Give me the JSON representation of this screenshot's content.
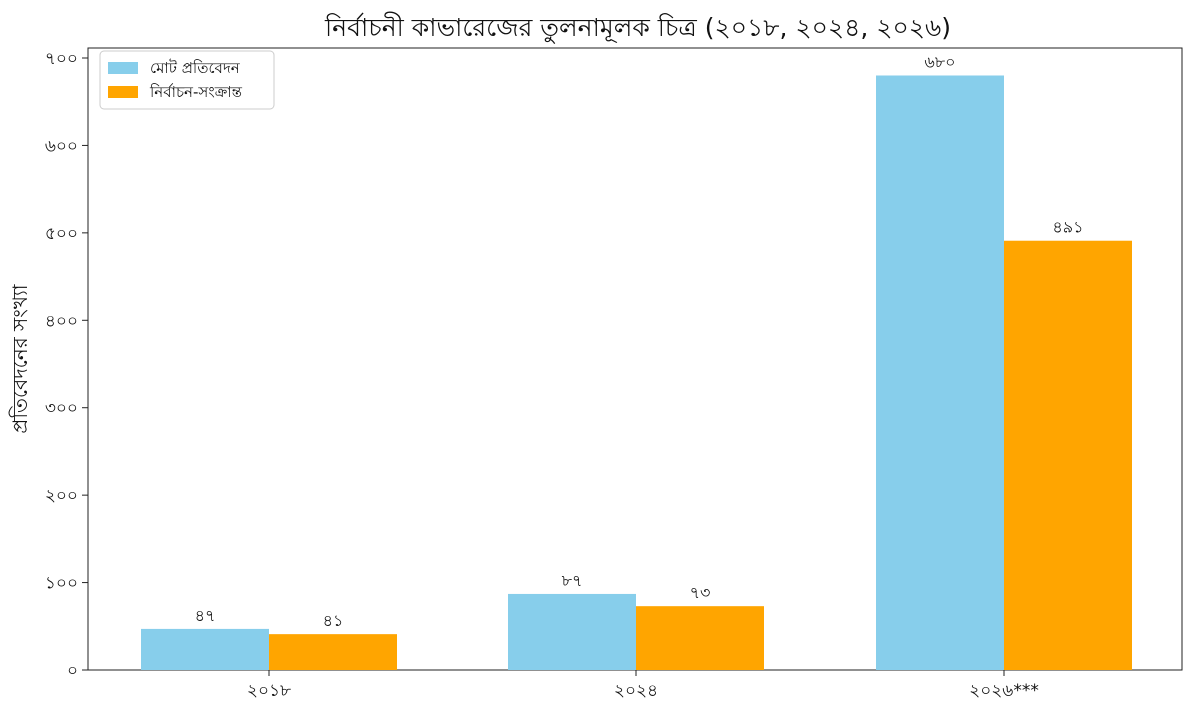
{
  "chart_data": {
    "type": "bar",
    "title": "নির্বাচনী কাভারেজের তুলনামূলক চিত্র (২০১৮, ২০২৪, ২০২৬)",
    "xlabel": "",
    "ylabel": "প্রতিবেদনের সংখ্যা",
    "categories": [
      "২০১৮",
      "২০২৪",
      "২০২৬***"
    ],
    "series": [
      {
        "name": "মোট প্রতিবেদন",
        "values": [
          47,
          87,
          680
        ],
        "value_labels": [
          "৪৭",
          "৮৭",
          "৬৮০"
        ],
        "color": "#87CEEB"
      },
      {
        "name": "নির্বাচন-সংক্রান্ত",
        "values": [
          41,
          73,
          491
        ],
        "value_labels": [
          "৪১",
          "৭৩",
          "৪৯১"
        ],
        "color": "#FFA500"
      }
    ],
    "ylim": [
      0,
      700
    ],
    "yticks": [
      0,
      100,
      200,
      300,
      400,
      500,
      600,
      700
    ],
    "ytick_labels": [
      "০",
      "১০০",
      "২০০",
      "৩০০",
      "৪০০",
      "৫০০",
      "৬০০",
      "৭০০"
    ],
    "grid": false,
    "legend_position": "top-left"
  }
}
